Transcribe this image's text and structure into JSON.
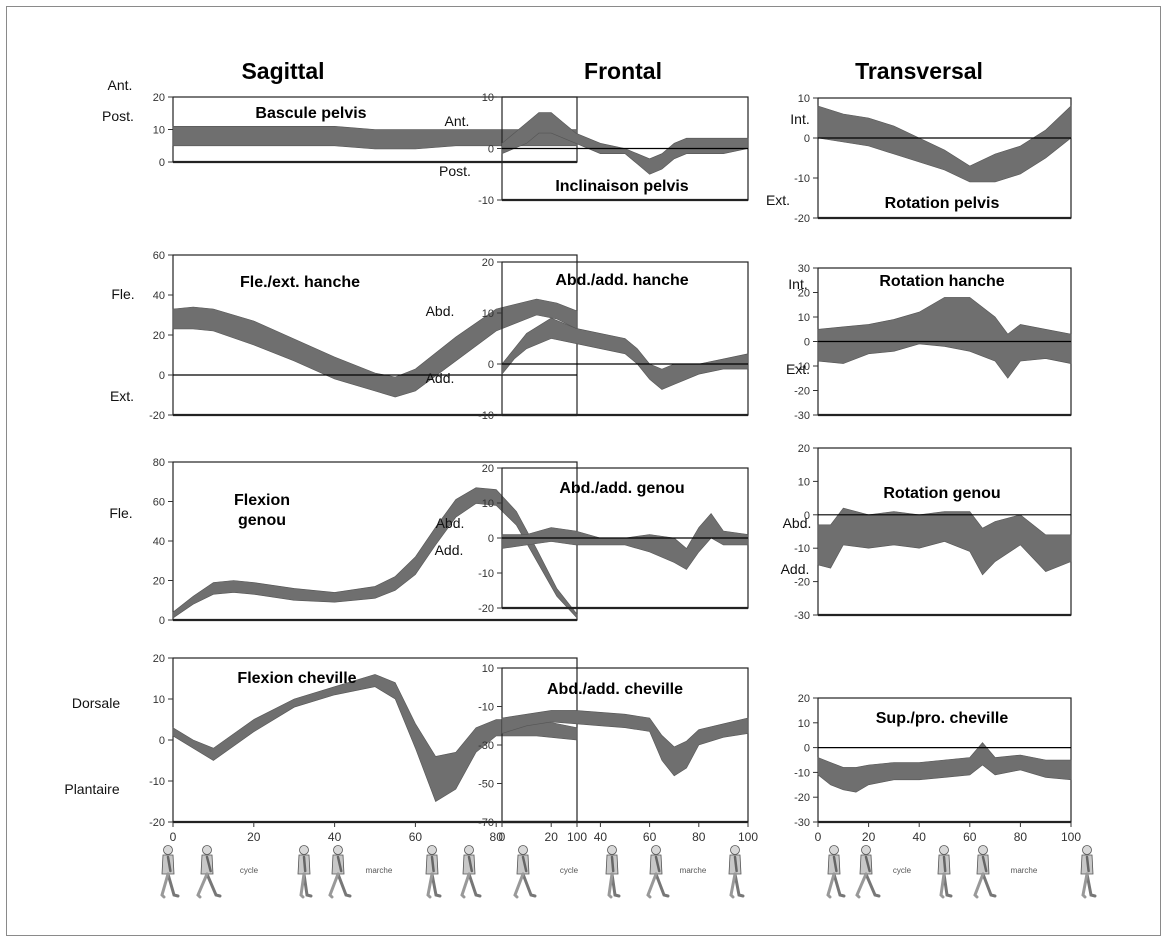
{
  "columns": [
    "Sagittal",
    "Frontal",
    "Transversal"
  ],
  "gait_caption": [
    "cycle",
    "marche"
  ],
  "chart_data": [
    {
      "type": "area",
      "title": "Bascule pelvis",
      "column": "Sagittal",
      "ylim": [
        0,
        20
      ],
      "yticks": [
        0,
        10,
        20
      ],
      "side_labels": [
        "Ant.",
        "Post."
      ],
      "x": [
        0,
        10,
        20,
        30,
        40,
        50,
        60,
        70,
        80,
        90,
        100
      ],
      "lower": [
        5,
        5,
        5,
        5,
        5,
        4,
        4,
        5,
        5,
        5,
        5
      ],
      "upper": [
        11,
        11,
        11,
        11,
        11,
        10,
        10,
        10,
        10,
        10,
        10
      ]
    },
    {
      "type": "area",
      "title": "Inclinaison pelvis",
      "column": "Frontal",
      "ylim": [
        -10,
        10
      ],
      "yticks": [
        -10,
        0,
        10
      ],
      "side_labels": [
        "Ant.",
        "Post."
      ],
      "x": [
        0,
        5,
        10,
        15,
        20,
        25,
        30,
        40,
        50,
        55,
        60,
        65,
        70,
        75,
        80,
        90,
        100
      ],
      "lower": [
        -1,
        0,
        1,
        3,
        3,
        2,
        1,
        -1,
        -1,
        -3,
        -5,
        -4,
        -2,
        -1,
        -1,
        -1,
        0
      ],
      "upper": [
        1,
        3,
        5,
        7,
        7,
        5,
        3,
        1,
        0,
        -1,
        -2,
        -1,
        1,
        2,
        2,
        2,
        2
      ]
    },
    {
      "type": "area",
      "title": "Rotation pelvis",
      "column": "Transversal",
      "ylim": [
        -20,
        10
      ],
      "yticks": [
        -20,
        -10,
        0,
        10
      ],
      "side_labels": [
        "Int.",
        "Ext."
      ],
      "x": [
        0,
        10,
        20,
        30,
        40,
        50,
        60,
        70,
        80,
        90,
        100
      ],
      "lower": [
        0,
        -1,
        -2,
        -4,
        -6,
        -8,
        -11,
        -11,
        -9,
        -5,
        0
      ],
      "upper": [
        8,
        6,
        5,
        3,
        0,
        -3,
        -7,
        -4,
        -2,
        2,
        8
      ]
    },
    {
      "type": "area",
      "title": "Fle./ext. hanche",
      "column": "Sagittal",
      "ylim": [
        -20,
        60
      ],
      "yticks": [
        -20,
        0,
        20,
        40,
        60
      ],
      "side_labels": [
        "Fle.",
        "Ext."
      ],
      "x": [
        0,
        5,
        10,
        20,
        30,
        40,
        50,
        55,
        60,
        70,
        80,
        90,
        95,
        100
      ],
      "lower": [
        23,
        23,
        22,
        15,
        7,
        -2,
        -8,
        -11,
        -8,
        7,
        22,
        30,
        28,
        23
      ],
      "upper": [
        33,
        34,
        33,
        27,
        18,
        9,
        1,
        -1,
        3,
        19,
        33,
        38,
        36,
        32
      ]
    },
    {
      "type": "area",
      "title": "Abd./add. hanche",
      "column": "Frontal",
      "ylim": [
        -10,
        20
      ],
      "yticks": [
        -10,
        0,
        10,
        20
      ],
      "side_labels": [
        "Abd.",
        "Add."
      ],
      "x": [
        0,
        5,
        10,
        20,
        30,
        40,
        50,
        55,
        60,
        65,
        70,
        80,
        90,
        100
      ],
      "lower": [
        -2,
        1,
        3,
        5,
        4,
        3,
        2,
        0,
        -3,
        -5,
        -4,
        -2,
        -1,
        -1
      ],
      "upper": [
        0,
        3,
        6,
        9,
        7,
        6,
        5,
        3,
        0,
        -1,
        0,
        0,
        1,
        2
      ]
    },
    {
      "type": "area",
      "title": "Rotation hanche",
      "column": "Transversal",
      "ylim": [
        -30,
        30
      ],
      "yticks": [
        -30,
        -20,
        -10,
        0,
        10,
        20,
        30
      ],
      "side_labels": [
        "Int.",
        "Ext."
      ],
      "x": [
        0,
        10,
        20,
        30,
        40,
        50,
        60,
        70,
        75,
        80,
        90,
        100
      ],
      "lower": [
        -8,
        -9,
        -5,
        -4,
        -1,
        -2,
        -4,
        -8,
        -15,
        -8,
        -7,
        -9
      ],
      "upper": [
        5,
        6,
        7,
        9,
        12,
        18,
        18,
        10,
        3,
        7,
        5,
        3
      ]
    },
    {
      "type": "area",
      "title": "Flexion genou",
      "column": "Sagittal",
      "ylim": [
        0,
        80
      ],
      "yticks": [
        0,
        20,
        40,
        60,
        80
      ],
      "side_labels": [
        "Fle."
      ],
      "x": [
        0,
        5,
        10,
        15,
        20,
        30,
        40,
        50,
        55,
        60,
        65,
        70,
        75,
        80,
        85,
        90,
        95,
        100
      ],
      "lower": [
        1,
        8,
        13,
        14,
        13,
        10,
        9,
        11,
        15,
        23,
        38,
        52,
        59,
        58,
        48,
        30,
        12,
        1
      ],
      "upper": [
        4,
        12,
        19,
        20,
        19,
        16,
        14,
        17,
        22,
        32,
        47,
        61,
        67,
        66,
        55,
        36,
        16,
        3
      ]
    },
    {
      "type": "area",
      "title": "Abd./add. genou",
      "column": "Frontal",
      "ylim": [
        -20,
        20
      ],
      "yticks": [
        -20,
        -10,
        0,
        10,
        20
      ],
      "side_labels": [
        "Abd.",
        "Add."
      ],
      "x": [
        0,
        10,
        20,
        30,
        40,
        50,
        60,
        70,
        75,
        80,
        85,
        90,
        100
      ],
      "lower": [
        -3,
        -2,
        -1,
        -2,
        -2,
        -2,
        -4,
        -7,
        -9,
        -4,
        0,
        -2,
        -2
      ],
      "upper": [
        1,
        1,
        3,
        2,
        0,
        0,
        1,
        0,
        -3,
        3,
        7,
        2,
        1
      ]
    },
    {
      "type": "area",
      "title": "Rotation genou",
      "column": "Transversal",
      "ylim": [
        -30,
        20
      ],
      "yticks": [
        -30,
        -20,
        -10,
        0,
        10,
        20
      ],
      "side_labels": [
        "Abd.",
        "Add."
      ],
      "x": [
        0,
        5,
        10,
        20,
        30,
        40,
        50,
        60,
        65,
        70,
        80,
        90,
        100
      ],
      "lower": [
        -15,
        -16,
        -9,
        -10,
        -9,
        -10,
        -8,
        -11,
        -18,
        -14,
        -9,
        -17,
        -14
      ],
      "upper": [
        -3,
        -3,
        2,
        0,
        1,
        0,
        1,
        1,
        -4,
        -2,
        0,
        -6,
        -6
      ]
    },
    {
      "type": "area",
      "title": "Flexion cheville",
      "column": "Sagittal",
      "ylim": [
        -20,
        20
      ],
      "yticks": [
        -20,
        -10,
        0,
        10,
        20
      ],
      "side_labels": [
        "Dorsale",
        "Plantaire"
      ],
      "xticks": [
        0,
        20,
        40,
        60,
        80,
        100
      ],
      "x": [
        0,
        5,
        10,
        20,
        30,
        40,
        50,
        55,
        60,
        65,
        70,
        75,
        80,
        90,
        100
      ],
      "lower": [
        1,
        -2,
        -5,
        2,
        8,
        11,
        13,
        10,
        -2,
        -15,
        -12,
        -3,
        1,
        1,
        0
      ],
      "upper": [
        3,
        0,
        -2,
        5,
        10,
        13,
        16,
        14,
        4,
        -4,
        -3,
        3,
        5,
        5,
        3
      ]
    },
    {
      "type": "area",
      "title": "Abd./add. cheville",
      "column": "Frontal",
      "ylim": [
        -70,
        10
      ],
      "yticks": [
        -70,
        -50,
        -30,
        -10,
        10
      ],
      "xticks": [
        0,
        20,
        40,
        60,
        80,
        100
      ],
      "x": [
        0,
        10,
        20,
        30,
        40,
        50,
        60,
        65,
        70,
        75,
        80,
        90,
        100
      ],
      "lower": [
        -24,
        -20,
        -18,
        -19,
        -20,
        -21,
        -23,
        -38,
        -46,
        -42,
        -30,
        -26,
        -24
      ],
      "upper": [
        -16,
        -14,
        -12,
        -12,
        -13,
        -14,
        -16,
        -25,
        -31,
        -28,
        -22,
        -19,
        -16
      ]
    },
    {
      "type": "area",
      "title": "Sup./pro. cheville",
      "column": "Transversal",
      "ylim": [
        -30,
        20
      ],
      "yticks": [
        -30,
        -20,
        -10,
        0,
        10,
        20
      ],
      "xticks": [
        0,
        20,
        40,
        60,
        80,
        100
      ],
      "x": [
        0,
        5,
        10,
        15,
        20,
        30,
        40,
        50,
        60,
        65,
        70,
        80,
        90,
        100
      ],
      "lower": [
        -11,
        -15,
        -17,
        -18,
        -15,
        -13,
        -13,
        -12,
        -11,
        -7,
        -11,
        -9,
        -12,
        -13
      ],
      "upper": [
        -4,
        -6,
        -8,
        -8,
        -7,
        -6,
        -6,
        -5,
        -4,
        2,
        -4,
        -3,
        -5,
        -5
      ]
    }
  ]
}
